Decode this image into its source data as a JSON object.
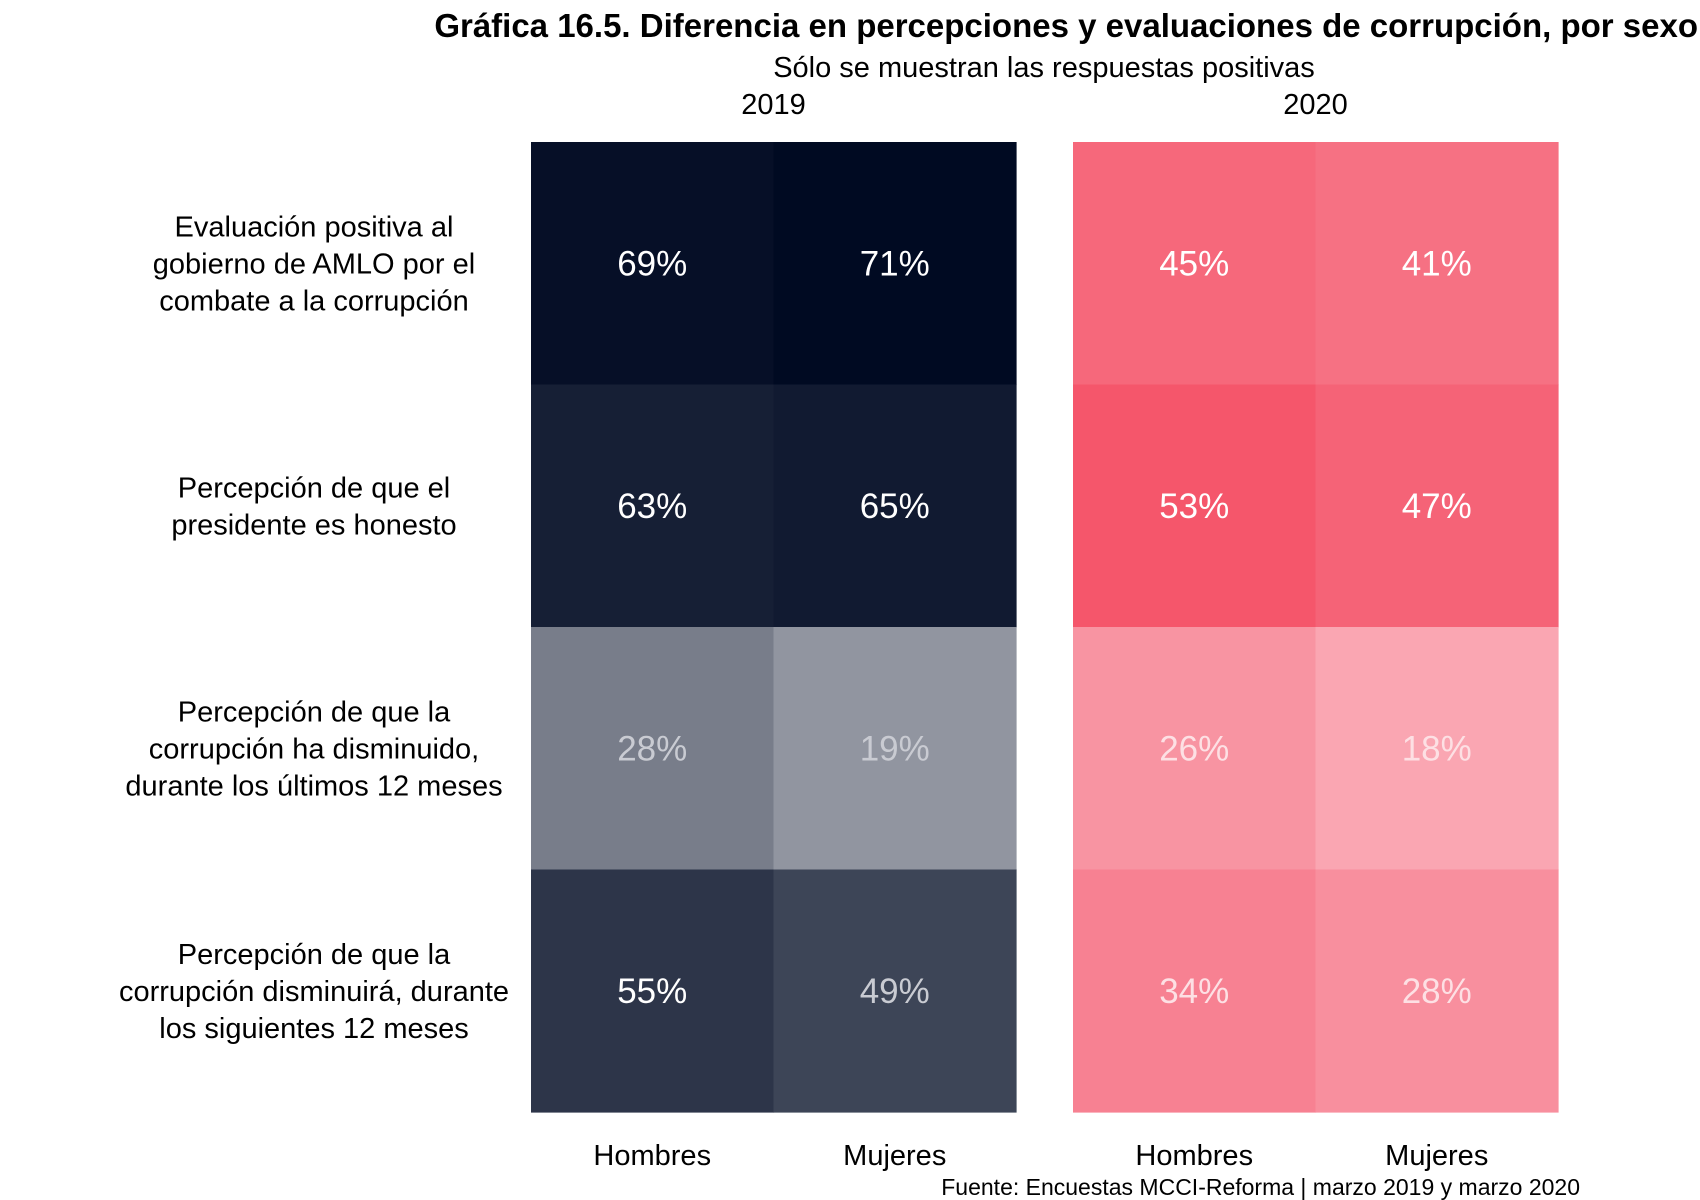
{
  "chart_data": {
    "type": "heatmap",
    "title": "Gráfica 16.5. Diferencia en percepciones y evaluaciones de corrupción, por sexo",
    "subtitle": "Sólo se muestran las respuestas positivas",
    "caption": "Fuente: Encuestas MCCI-Reforma | marzo 2019 y marzo 2020",
    "legend": "none",
    "grid": false,
    "columns": [
      "Hombres",
      "Mujeres"
    ],
    "rows": [
      [
        "Evaluación positiva al",
        "gobierno de AMLO por el",
        "combate a la corrupción"
      ],
      [
        "Percepción de que el",
        "presidente es honesto"
      ],
      [
        "Percepción de que la",
        "corrupción ha disminuido,",
        "durante los últimos 12 meses"
      ],
      [
        "Percepción de que la",
        "corrupción disminuirá, durante",
        "los siguientes 12 meses"
      ]
    ],
    "panels": [
      {
        "facet": "2019",
        "high_color": "#000a22",
        "low_color": "#ffffff",
        "values": [
          [
            69,
            71
          ],
          [
            63,
            65
          ],
          [
            28,
            19
          ],
          [
            55,
            49
          ]
        ],
        "labels": [
          [
            "69%",
            "71%"
          ],
          [
            "63%",
            "65%"
          ],
          [
            "28%",
            "19%"
          ],
          [
            "55%",
            "49%"
          ]
        ]
      },
      {
        "facet": "2020",
        "high_color": "#f22c47",
        "low_color": "#ffffff",
        "values": [
          [
            45,
            41
          ],
          [
            53,
            47
          ],
          [
            26,
            18
          ],
          [
            34,
            28
          ]
        ],
        "labels": [
          [
            "45%",
            "41%"
          ],
          [
            "53%",
            "47%"
          ],
          [
            "26%",
            "18%"
          ],
          [
            "34%",
            "28%"
          ]
        ]
      }
    ]
  }
}
